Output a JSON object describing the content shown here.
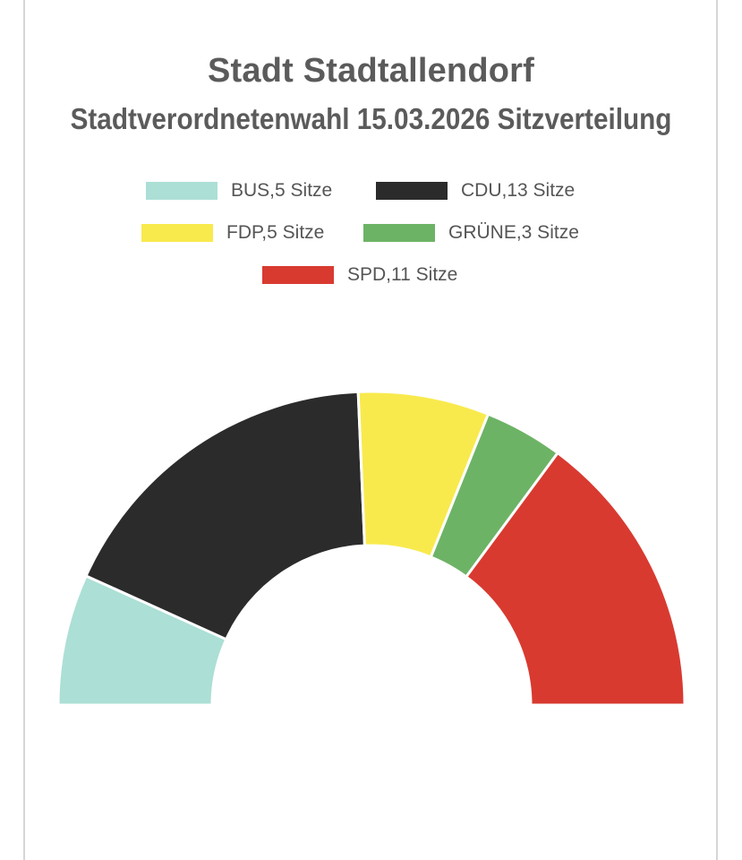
{
  "chart_data": {
    "type": "pie",
    "variant": "half-donut (parliament seat distribution)",
    "title": "Stadt Stadtallendorf",
    "subtitle": "Stadtverordnetenwahl 15.03.2026 Sitzverteilung",
    "legend_position": "top",
    "series": [
      {
        "name": "BUS",
        "value": 5,
        "label": "BUS,5 Sitze",
        "color": "#acdfd6"
      },
      {
        "name": "CDU",
        "value": 13,
        "label": "CDU,13 Sitze",
        "color": "#2b2b2b"
      },
      {
        "name": "FDP",
        "value": 5,
        "label": "FDP,5 Sitze",
        "color": "#f8ea4d"
      },
      {
        "name": "GRÜNE",
        "value": 3,
        "label": "GRÜNE,3 Sitze",
        "color": "#6db366"
      },
      {
        "name": "SPD",
        "value": 11,
        "label": "SPD,11 Sitze",
        "color": "#d83a30"
      }
    ]
  }
}
